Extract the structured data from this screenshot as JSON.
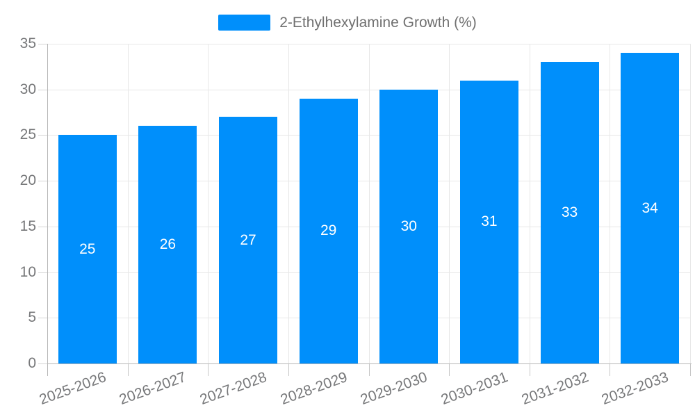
{
  "chart_data": {
    "type": "bar",
    "title": "",
    "categories": [
      "2025-2026",
      "2026-2027",
      "2027-2028",
      "2028-2029",
      "2029-2030",
      "2030-2031",
      "2031-2032",
      "2032-2033"
    ],
    "series": [
      {
        "name": "2-Ethylhexylamine Growth (%)",
        "values": [
          25,
          26,
          27,
          29,
          30,
          31,
          33,
          34
        ]
      }
    ],
    "bar_value_labels": [
      "25",
      "26",
      "27",
      "29",
      "30",
      "31",
      "33",
      "34"
    ],
    "xlabel": "",
    "ylabel": "",
    "ylim": [
      0,
      35
    ],
    "yticks": [
      0,
      5,
      10,
      15,
      20,
      25,
      30,
      35
    ],
    "grid": "on",
    "legend_position": "top-center",
    "colors": {
      "bar": "#008FFB",
      "bar_label_text": "#ffffff",
      "legend_text": "#707070",
      "axis_label_text": "#77787a",
      "gridline": "#e7e7e7",
      "axis_line": "#b6b6b6"
    }
  }
}
